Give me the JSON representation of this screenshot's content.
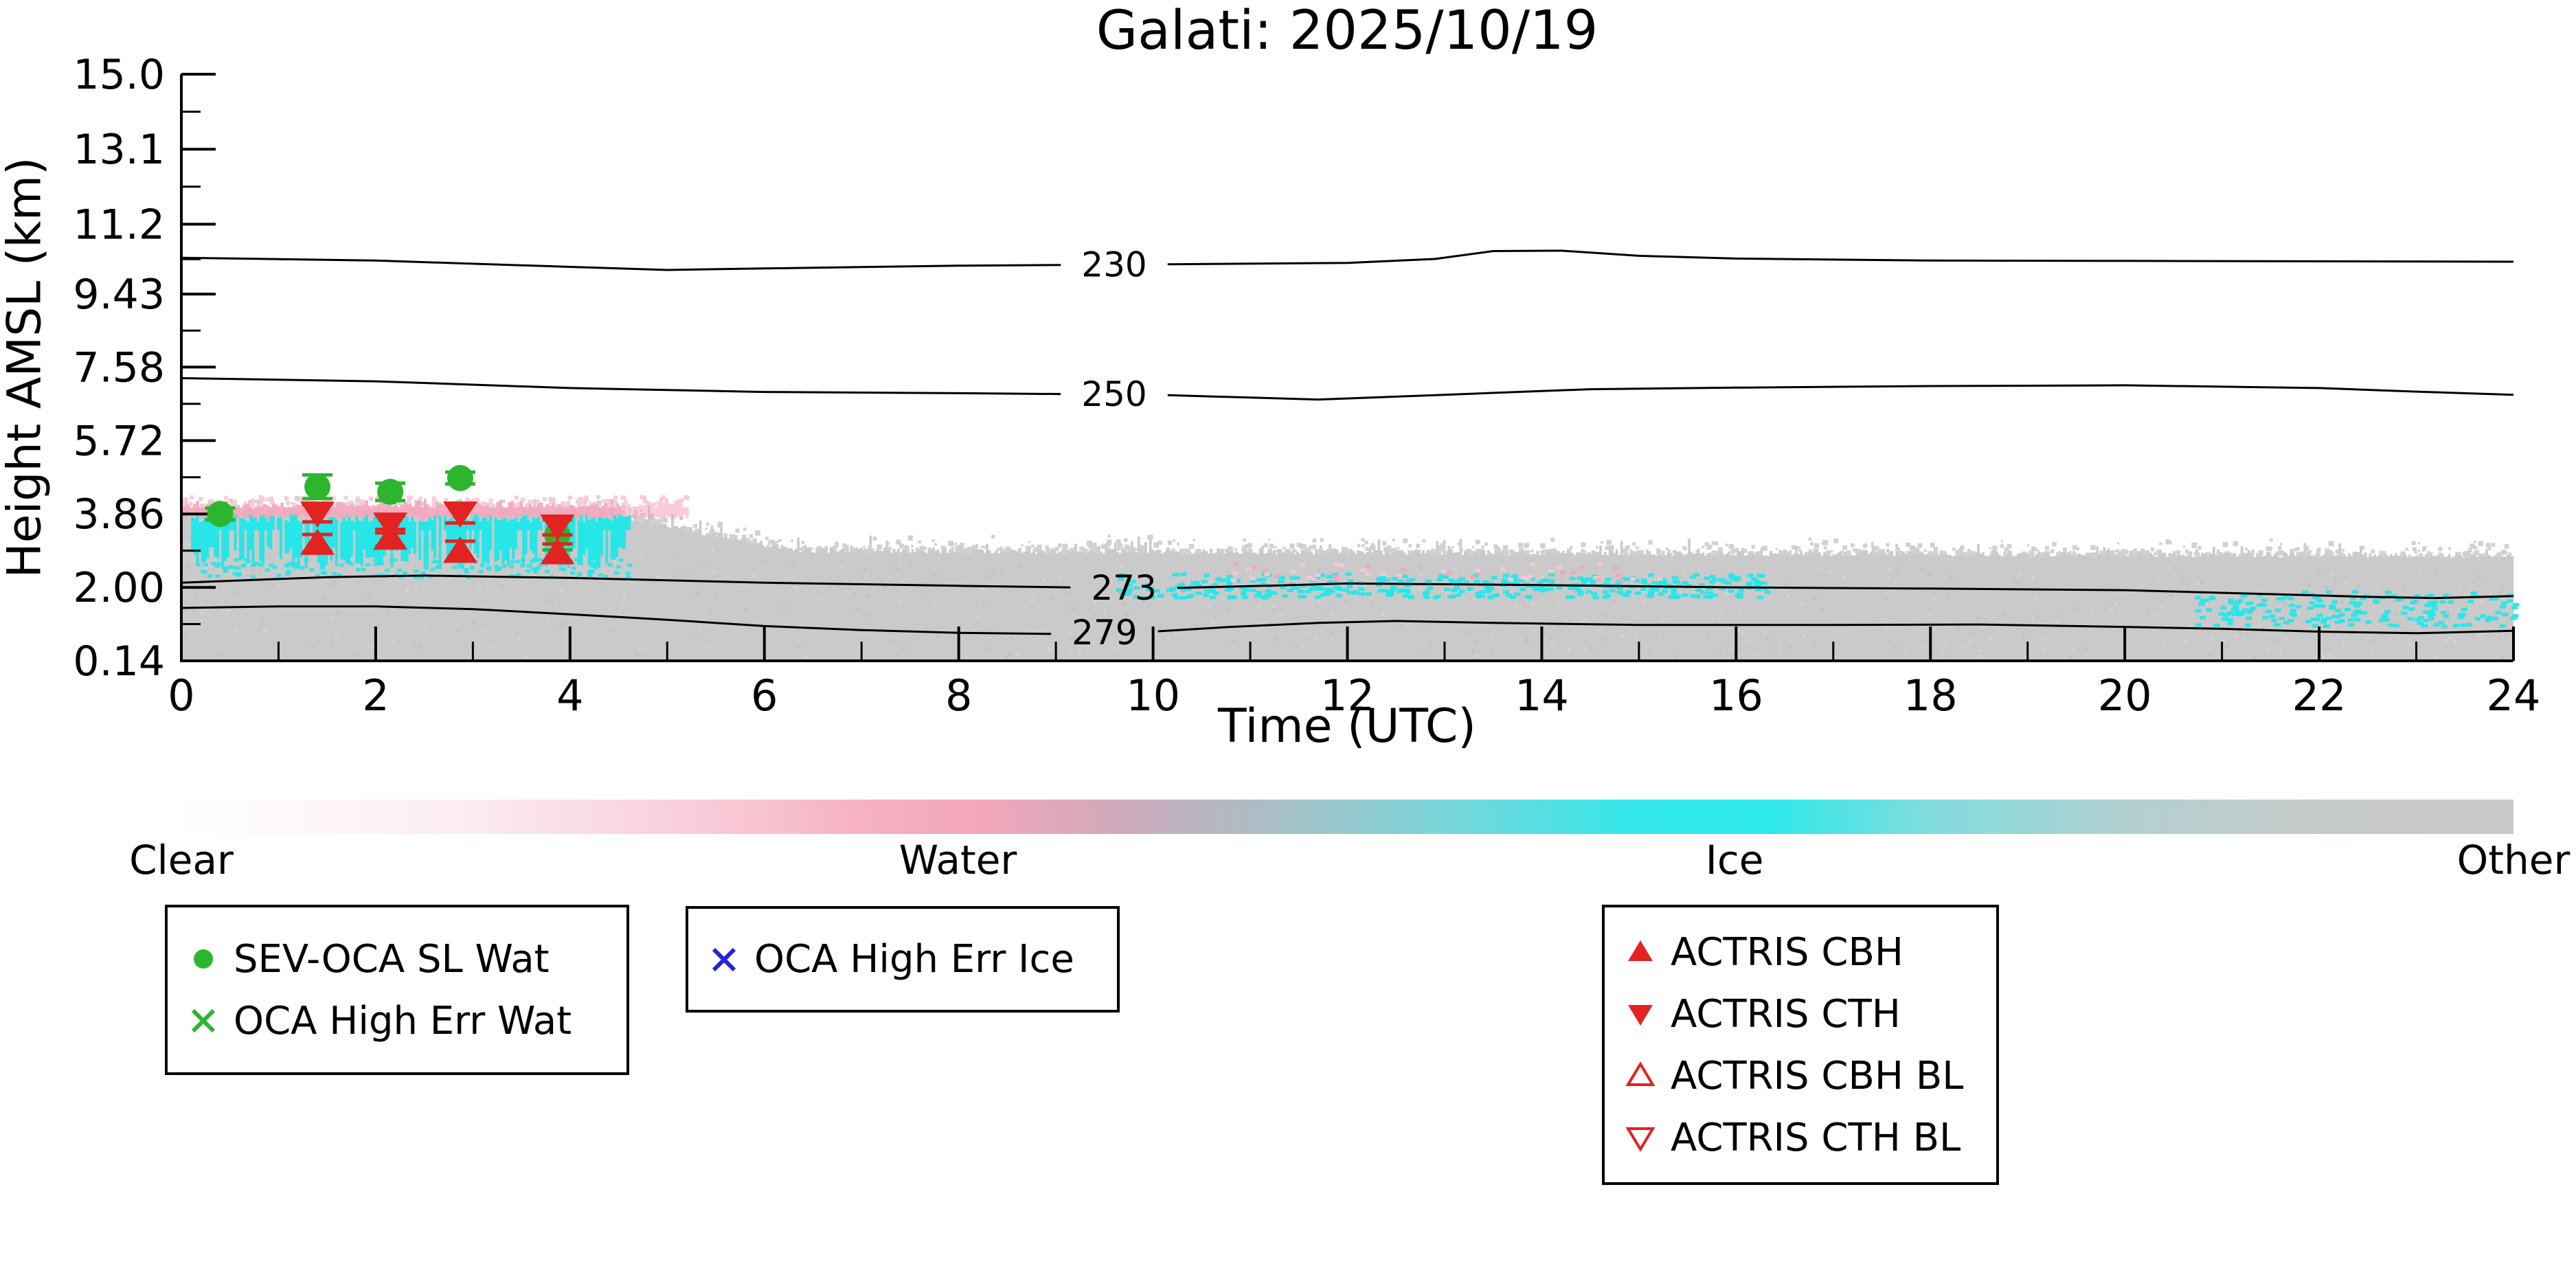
{
  "title": "Galati: 2025/10/19",
  "axes": {
    "x": {
      "label": "Time (UTC)",
      "min": 0,
      "max": 24,
      "major_ticks": [
        "0",
        "2",
        "4",
        "6",
        "8",
        "10",
        "12",
        "14",
        "16",
        "18",
        "20",
        "22",
        "24"
      ]
    },
    "y": {
      "label": "Height AMSL (km)",
      "min": 0.14,
      "max": 15.0,
      "ticks": [
        "15.0",
        "13.1",
        "11.2",
        "9.43",
        "7.58",
        "5.72",
        "3.86",
        "2.00",
        "0.14"
      ]
    }
  },
  "colorbar": {
    "labels": [
      {
        "text": "Clear",
        "frac": 0
      },
      {
        "text": "Water",
        "frac": 0.333
      },
      {
        "text": "Ice",
        "frac": 0.666
      },
      {
        "text": "Other",
        "frac": 1
      }
    ],
    "gradient": [
      [
        "0%",
        "#ffffff"
      ],
      [
        "12%",
        "#fcedf1"
      ],
      [
        "22%",
        "#f9cdd9"
      ],
      [
        "30%",
        "#f5afc2"
      ],
      [
        "34%",
        "#f4a6bb"
      ],
      [
        "40%",
        "#d0aabb"
      ],
      [
        "47%",
        "#a8bfc6"
      ],
      [
        "55%",
        "#73d8dc"
      ],
      [
        "62%",
        "#35e7e9"
      ],
      [
        "68%",
        "#2ce9ea"
      ],
      [
        "75%",
        "#82dcdd"
      ],
      [
        "84%",
        "#b5cfd0"
      ],
      [
        "92%",
        "#c6cac9"
      ],
      [
        "100%",
        "#c9c9c9"
      ]
    ]
  },
  "legend_boxes": [
    {
      "items": [
        {
          "marker": "circle",
          "color": "#2db52d",
          "label": "SEV-OCA SL Wat"
        },
        {
          "marker": "x",
          "color": "#2db52d",
          "label": "OCA High Err Wat"
        }
      ]
    },
    {
      "items": [
        {
          "marker": "x",
          "color": "#2424dd",
          "label": "OCA High Err Ice"
        }
      ]
    },
    {
      "items": [
        {
          "marker": "tri-up",
          "color": "#e32222",
          "label": "ACTRIS CBH"
        },
        {
          "marker": "tri-down",
          "color": "#e32222",
          "label": "ACTRIS CTH"
        },
        {
          "marker": "tri-up-open",
          "color": "#e32222",
          "label": "ACTRIS CBH BL"
        },
        {
          "marker": "tri-down-open",
          "color": "#e32222",
          "label": "ACTRIS CTH BL"
        }
      ]
    }
  ],
  "chart_data": {
    "type": "heatmap",
    "title": "Galati: 2025/10/19",
    "xlabel": "Time (UTC)",
    "ylabel": "Height AMSL (km)",
    "x_range_hours": [
      0,
      24
    ],
    "y_range_km": [
      0.14,
      15.0
    ],
    "classes": [
      "Clear",
      "Water",
      "Ice",
      "Other"
    ],
    "classification_regions": [
      {
        "class": "other",
        "color": "#cacaca",
        "hours": [
          0,
          24
        ],
        "top_km_profile": [
          [
            0,
            3.92
          ],
          [
            4.3,
            3.92
          ],
          [
            6.3,
            2.95
          ],
          [
            24,
            2.82
          ]
        ],
        "bottom_km": 0.14
      },
      {
        "class": "water",
        "color": "#f3a6bc",
        "hours": [
          0,
          5.2
        ],
        "km": [
          3.78,
          4.12
        ],
        "density": "band"
      },
      {
        "class": "ice",
        "color": "#27e6e8",
        "hours": [
          0.1,
          4.6
        ],
        "km": [
          2.45,
          3.75
        ],
        "density": "dense"
      },
      {
        "class": "ice",
        "color": "#27e6e8",
        "hours": [
          9.6,
          16.3
        ],
        "km": [
          1.78,
          2.38
        ],
        "density": "sparse"
      },
      {
        "class": "water",
        "color": "#f3a6bc",
        "hours": [
          10.8,
          15.2
        ],
        "km": [
          2.2,
          2.65
        ],
        "density": "very-sparse"
      },
      {
        "class": "ice",
        "color": "#27e6e8",
        "hours": [
          20.7,
          24
        ],
        "km": [
          1.05,
          1.95
        ],
        "density": "sparse"
      }
    ],
    "contours": [
      {
        "label": "230",
        "label_hour": 9.6,
        "points": [
          [
            0,
            10.35
          ],
          [
            2,
            10.28
          ],
          [
            4,
            10.12
          ],
          [
            5,
            10.04
          ],
          [
            6,
            10.08
          ],
          [
            8,
            10.15
          ],
          [
            10,
            10.18
          ],
          [
            12,
            10.22
          ],
          [
            12.9,
            10.32
          ],
          [
            13.5,
            10.52
          ],
          [
            14.2,
            10.53
          ],
          [
            15,
            10.4
          ],
          [
            16,
            10.33
          ],
          [
            18,
            10.28
          ],
          [
            20,
            10.27
          ],
          [
            22,
            10.26
          ],
          [
            24,
            10.25
          ]
        ]
      },
      {
        "label": "250",
        "label_hour": 9.6,
        "points": [
          [
            0,
            7.3
          ],
          [
            2,
            7.22
          ],
          [
            4,
            7.05
          ],
          [
            6,
            6.95
          ],
          [
            8,
            6.92
          ],
          [
            10,
            6.88
          ],
          [
            11.7,
            6.76
          ],
          [
            13,
            6.88
          ],
          [
            14.5,
            7.02
          ],
          [
            16,
            7.06
          ],
          [
            18,
            7.1
          ],
          [
            20,
            7.12
          ],
          [
            22,
            7.05
          ],
          [
            23,
            6.96
          ],
          [
            24,
            6.88
          ]
        ]
      },
      {
        "label": "273",
        "label_hour": 9.7,
        "points": [
          [
            0,
            2.12
          ],
          [
            1.5,
            2.26
          ],
          [
            2.5,
            2.3
          ],
          [
            4,
            2.24
          ],
          [
            6,
            2.12
          ],
          [
            8,
            2.04
          ],
          [
            10,
            1.97
          ],
          [
            11.3,
            2.05
          ],
          [
            12,
            2.1
          ],
          [
            14,
            2.06
          ],
          [
            16,
            2.0
          ],
          [
            18,
            1.97
          ],
          [
            20,
            1.93
          ],
          [
            21.5,
            1.83
          ],
          [
            22.5,
            1.76
          ],
          [
            23.2,
            1.73
          ],
          [
            24,
            1.78
          ]
        ]
      },
      {
        "label": "279",
        "label_hour": 9.5,
        "points": [
          [
            0,
            1.48
          ],
          [
            1,
            1.52
          ],
          [
            2,
            1.52
          ],
          [
            3,
            1.45
          ],
          [
            4,
            1.32
          ],
          [
            5,
            1.18
          ],
          [
            6,
            1.02
          ],
          [
            7,
            0.92
          ],
          [
            8,
            0.85
          ],
          [
            9,
            0.82
          ],
          [
            10,
            0.88
          ],
          [
            10.8,
            1.0
          ],
          [
            11.7,
            1.1
          ],
          [
            12.5,
            1.15
          ],
          [
            13.5,
            1.1
          ],
          [
            15,
            1.05
          ],
          [
            17,
            1.05
          ],
          [
            18.5,
            1.06
          ],
          [
            20,
            1.0
          ],
          [
            21,
            0.95
          ],
          [
            22,
            0.88
          ],
          [
            23,
            0.84
          ],
          [
            24,
            0.9
          ]
        ]
      }
    ],
    "markers": {
      "sev_oca_sl_wat": {
        "color": "#2db52d",
        "marker": "circle",
        "points": [
          {
            "hour": 0.4,
            "km": 3.86,
            "err": 0.15
          },
          {
            "hour": 1.4,
            "km": 4.55,
            "err": 0.3
          },
          {
            "hour": 2.15,
            "km": 4.42,
            "err": 0.22
          },
          {
            "hour": 2.87,
            "km": 4.77,
            "err": 0.15
          },
          {
            "hour": 3.87,
            "km": 3.33,
            "err": 0.38
          }
        ]
      },
      "actris_cth": {
        "color": "#e32222",
        "marker": "tri-down",
        "points": [
          {
            "hour": 1.4,
            "km": 3.88,
            "err": 0.22
          },
          {
            "hour": 2.15,
            "km": 3.6,
            "err": 0.22
          },
          {
            "hour": 2.87,
            "km": 3.88,
            "err": 0.25
          },
          {
            "hour": 3.87,
            "km": 3.55,
            "err": 0.22
          }
        ]
      },
      "actris_cbh": {
        "color": "#e32222",
        "marker": "tri-up",
        "points": [
          {
            "hour": 1.4,
            "km": 3.12,
            "err": 0.22
          },
          {
            "hour": 2.15,
            "km": 3.25,
            "err": 0.22
          },
          {
            "hour": 2.87,
            "km": 2.92,
            "err": 0.25
          },
          {
            "hour": 3.87,
            "km": 2.88,
            "err": 0.22
          }
        ]
      }
    }
  }
}
